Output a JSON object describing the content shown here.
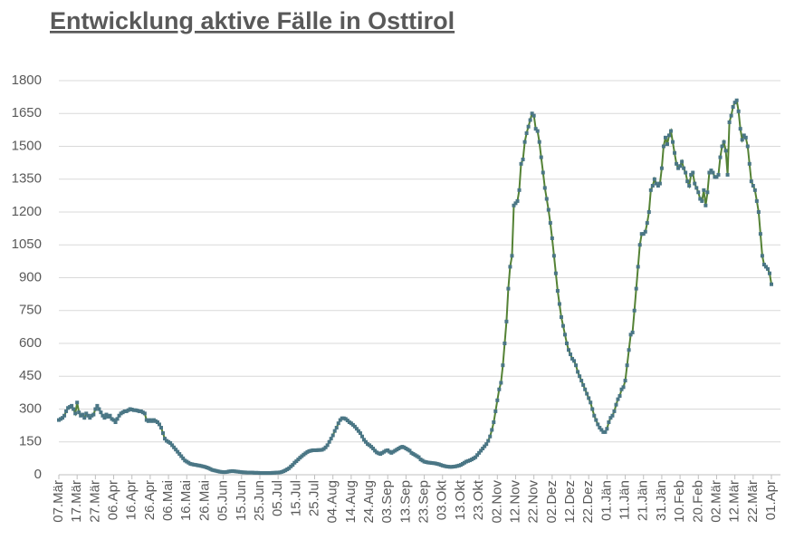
{
  "chart_data": {
    "type": "line",
    "title": "Entwicklung aktive Fälle in Osttirol",
    "categories": [
      "07.Mär",
      null,
      null,
      null,
      null,
      null,
      null,
      null,
      null,
      null,
      "17.Mär",
      null,
      null,
      null,
      null,
      null,
      null,
      null,
      null,
      null,
      "27.Mär",
      null,
      null,
      null,
      null,
      null,
      null,
      null,
      null,
      null,
      "06.Apr",
      null,
      null,
      null,
      null,
      null,
      null,
      null,
      null,
      null,
      "16.Apr",
      null,
      null,
      null,
      null,
      null,
      null,
      null,
      null,
      null,
      "26.Apr",
      null,
      null,
      null,
      null,
      null,
      null,
      null,
      null,
      null,
      "06.Mai",
      null,
      null,
      null,
      null,
      null,
      null,
      null,
      null,
      null,
      "16.Mai",
      null,
      null,
      null,
      null,
      null,
      null,
      null,
      null,
      null,
      "26.Mai",
      null,
      null,
      null,
      null,
      null,
      null,
      null,
      null,
      null,
      "05.Jun",
      null,
      null,
      null,
      null,
      null,
      null,
      null,
      null,
      null,
      "15.Jun",
      null,
      null,
      null,
      null,
      null,
      null,
      null,
      null,
      null,
      "25.Jun",
      null,
      null,
      null,
      null,
      null,
      null,
      null,
      null,
      null,
      "05.Jul",
      null,
      null,
      null,
      null,
      null,
      null,
      null,
      null,
      null,
      "15.Jul",
      null,
      null,
      null,
      null,
      null,
      null,
      null,
      null,
      null,
      "25.Jul",
      null,
      null,
      null,
      null,
      null,
      null,
      null,
      null,
      null,
      "04.Aug",
      null,
      null,
      null,
      null,
      null,
      null,
      null,
      null,
      null,
      "14.Aug",
      null,
      null,
      null,
      null,
      null,
      null,
      null,
      null,
      null,
      "24.Aug",
      null,
      null,
      null,
      null,
      null,
      null,
      null,
      null,
      null,
      "03.Sep",
      null,
      null,
      null,
      null,
      null,
      null,
      null,
      null,
      null,
      "13.Sep",
      null,
      null,
      null,
      null,
      null,
      null,
      null,
      null,
      null,
      "23.Sep",
      null,
      null,
      null,
      null,
      null,
      null,
      null,
      null,
      null,
      "03.Okt",
      null,
      null,
      null,
      null,
      null,
      null,
      null,
      null,
      null,
      "13.Okt",
      null,
      null,
      null,
      null,
      null,
      null,
      null,
      null,
      null,
      "23.Okt",
      null,
      null,
      null,
      null,
      null,
      null,
      null,
      null,
      null,
      "02.Nov",
      null,
      null,
      null,
      null,
      null,
      null,
      null,
      null,
      null,
      "12.Nov",
      null,
      null,
      null,
      null,
      null,
      null,
      null,
      null,
      null,
      "22.Nov",
      null,
      null,
      null,
      null,
      null,
      null,
      null,
      null,
      null,
      "02.Dez",
      null,
      null,
      null,
      null,
      null,
      null,
      null,
      null,
      null,
      "12.Dez",
      null,
      null,
      null,
      null,
      null,
      null,
      null,
      null,
      null,
      "22.Dez",
      null,
      null,
      null,
      null,
      null,
      null,
      null,
      null,
      null,
      "01.Jän",
      null,
      null,
      null,
      null,
      null,
      null,
      null,
      null,
      null,
      "11.Jän",
      null,
      null,
      null,
      null,
      null,
      null,
      null,
      null,
      null,
      "21.Jän",
      null,
      null,
      null,
      null,
      null,
      null,
      null,
      null,
      null,
      "31.Jän",
      null,
      null,
      null,
      null,
      null,
      null,
      null,
      null,
      null,
      "10.Feb",
      null,
      null,
      null,
      null,
      null,
      null,
      null,
      null,
      null,
      "20.Feb",
      null,
      null,
      null,
      null,
      null,
      null,
      null,
      null,
      null,
      "02.Mär",
      null,
      null,
      null,
      null,
      null,
      null,
      null,
      null,
      null,
      "12.Mär",
      null,
      null,
      null,
      null,
      null,
      null,
      null,
      null,
      null,
      "22.Mär",
      null,
      null,
      null,
      null,
      null,
      null,
      null,
      null,
      null,
      "01.Apr"
    ],
    "values": [
      250,
      255,
      260,
      270,
      290,
      305,
      310,
      315,
      300,
      280,
      330,
      285,
      270,
      275,
      260,
      280,
      270,
      260,
      270,
      275,
      300,
      315,
      300,
      285,
      270,
      260,
      275,
      265,
      270,
      255,
      250,
      240,
      255,
      270,
      280,
      285,
      290,
      290,
      295,
      300,
      298,
      295,
      295,
      293,
      290,
      290,
      285,
      280,
      250,
      245,
      250,
      245,
      250,
      245,
      240,
      230,
      215,
      190,
      165,
      155,
      150,
      145,
      135,
      125,
      115,
      105,
      95,
      85,
      75,
      65,
      60,
      55,
      50,
      48,
      46,
      45,
      43,
      42,
      40,
      38,
      36,
      33,
      30,
      26,
      22,
      20,
      18,
      16,
      14,
      13,
      12,
      12,
      13,
      15,
      16,
      17,
      16,
      15,
      14,
      13,
      12,
      11,
      11,
      10,
      10,
      10,
      10,
      9,
      9,
      9,
      8,
      8,
      8,
      8,
      8,
      8,
      8,
      9,
      9,
      10,
      10,
      11,
      13,
      16,
      20,
      25,
      30,
      38,
      45,
      55,
      62,
      70,
      78,
      85,
      92,
      98,
      104,
      108,
      110,
      112,
      112,
      112,
      113,
      113,
      114,
      118,
      125,
      135,
      150,
      165,
      180,
      200,
      215,
      235,
      250,
      258,
      258,
      255,
      248,
      240,
      235,
      228,
      220,
      210,
      200,
      190,
      175,
      160,
      150,
      140,
      135,
      128,
      120,
      110,
      102,
      98,
      95,
      100,
      105,
      110,
      112,
      105,
      100,
      105,
      110,
      115,
      120,
      125,
      128,
      125,
      120,
      115,
      110,
      100,
      95,
      90,
      85,
      80,
      70,
      65,
      60,
      58,
      56,
      55,
      54,
      53,
      52,
      50,
      48,
      45,
      42,
      40,
      38,
      37,
      36,
      36,
      37,
      38,
      40,
      42,
      45,
      50,
      55,
      60,
      63,
      66,
      70,
      75,
      80,
      90,
      100,
      110,
      120,
      130,
      140,
      155,
      175,
      205,
      240,
      290,
      340,
      390,
      420,
      500,
      600,
      700,
      850,
      950,
      1000,
      1230,
      1240,
      1250,
      1300,
      1420,
      1440,
      1520,
      1560,
      1590,
      1620,
      1650,
      1640,
      1580,
      1570,
      1520,
      1450,
      1380,
      1310,
      1260,
      1210,
      1150,
      1080,
      1000,
      920,
      840,
      780,
      720,
      680,
      640,
      600,
      570,
      550,
      530,
      520,
      500,
      470,
      450,
      430,
      410,
      390,
      370,
      350,
      330,
      300,
      270,
      250,
      230,
      215,
      205,
      195,
      195,
      210,
      240,
      260,
      270,
      290,
      320,
      345,
      360,
      390,
      400,
      430,
      500,
      570,
      640,
      650,
      750,
      850,
      950,
      1050,
      1100,
      1100,
      1110,
      1150,
      1200,
      1300,
      1320,
      1350,
      1330,
      1320,
      1330,
      1400,
      1500,
      1540,
      1510,
      1550,
      1570,
      1520,
      1470,
      1420,
      1400,
      1410,
      1430,
      1400,
      1380,
      1340,
      1320,
      1370,
      1380,
      1330,
      1310,
      1290,
      1260,
      1250,
      1300,
      1230,
      1290,
      1380,
      1390,
      1380,
      1360,
      1360,
      1370,
      1450,
      1500,
      1520,
      1480,
      1370,
      1610,
      1640,
      1680,
      1700,
      1710,
      1660,
      1580,
      1530,
      1550,
      1540,
      1500,
      1420,
      1340,
      1320,
      1300,
      1250,
      1200,
      1100,
      1000,
      960,
      950,
      940,
      920,
      870
    ],
    "color": "#548235",
    "marker_color": "#4a7685",
    "ylim": [
      0,
      1800
    ],
    "yticks": [
      0,
      150,
      300,
      450,
      600,
      750,
      900,
      1050,
      1200,
      1350,
      1500,
      1650,
      1800
    ],
    "grid": true
  }
}
